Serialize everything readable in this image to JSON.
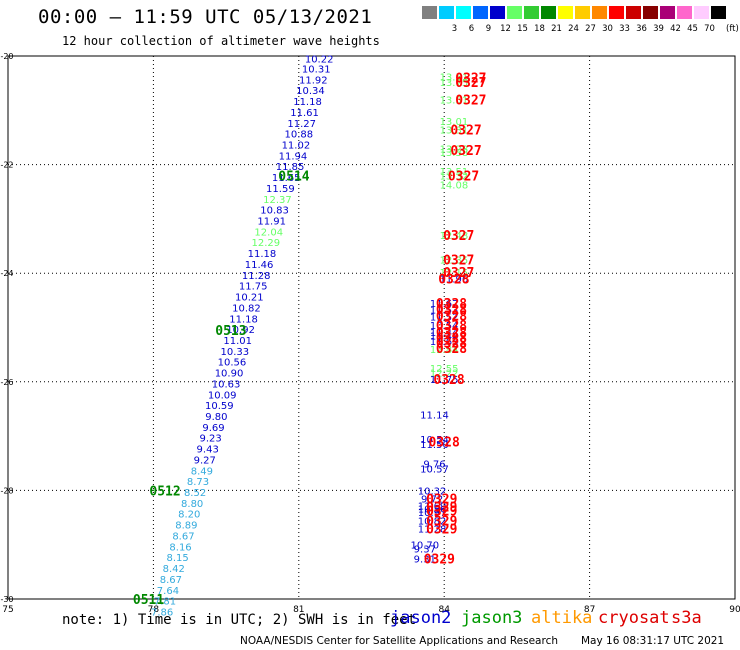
{
  "header": {
    "title": "00:00 – 11:59 UTC 05/13/2021",
    "subtitle": "12 hour collection of altimeter wave heights"
  },
  "legend": {
    "unit": "(ft)",
    "bins": [
      {
        "label": "",
        "color": "#808080"
      },
      {
        "label": "3",
        "color": "#00ccff"
      },
      {
        "label": "6",
        "color": "#00ffff"
      },
      {
        "label": "9",
        "color": "#0066ff"
      },
      {
        "label": "12",
        "color": "#0000cc"
      },
      {
        "label": "15",
        "color": "#66ff66"
      },
      {
        "label": "18",
        "color": "#33cc33"
      },
      {
        "label": "21",
        "color": "#008800"
      },
      {
        "label": "24",
        "color": "#ffff00"
      },
      {
        "label": "27",
        "color": "#ffcc00"
      },
      {
        "label": "30",
        "color": "#ff8800"
      },
      {
        "label": "33",
        "color": "#ff0000"
      },
      {
        "label": "36",
        "color": "#cc0000"
      },
      {
        "label": "39",
        "color": "#880000"
      },
      {
        "label": "42",
        "color": "#aa0077"
      },
      {
        "label": "45",
        "color": "#ff66cc"
      },
      {
        "label": "70",
        "color": "#ffccff"
      },
      {
        "label": "",
        "color": "#000000"
      }
    ]
  },
  "footer": {
    "note": "note: 1) Time is in UTC; 2) SWH is in feet",
    "credit": "NOAA/NESDIS Center for Satellite Applications and Research",
    "stamp": "May 16 08:31:17 UTC 2021",
    "missions": [
      {
        "name": "jason2",
        "color": "#0000cc"
      },
      {
        "name": "jason3",
        "color": "#009900"
      },
      {
        "name": "altika",
        "color": "#ff9900"
      },
      {
        "name": "cryosat",
        "color": "#dd0000"
      },
      {
        "name": "s3a",
        "color": "#dd0000"
      }
    ]
  },
  "chart_data": {
    "type": "scatter",
    "title": "",
    "xlim": [
      75,
      90
    ],
    "ylim": [
      -30,
      -20
    ],
    "xticks": [
      "75",
      "78",
      "81",
      "84",
      "87",
      "90"
    ],
    "yticks": [
      "-20",
      "-22",
      "-24",
      "-26",
      "-28",
      "-30"
    ],
    "grid": true,
    "colors": {
      "dark": "#0000cc",
      "mid": "#33aadd",
      "light": "#66ff66",
      "time": "#008800",
      "red": "#ff0000"
    },
    "track_a": [
      {
        "lon": 81.42,
        "lat": -20.05,
        "v": "10.22",
        "c": "dark"
      },
      {
        "lon": 81.36,
        "lat": -20.23,
        "v": "10.31",
        "c": "dark"
      },
      {
        "lon": 81.3,
        "lat": -20.43,
        "v": "11.92",
        "c": "dark"
      },
      {
        "lon": 81.24,
        "lat": -20.63,
        "v": "10.34",
        "c": "dark"
      },
      {
        "lon": 81.18,
        "lat": -20.83,
        "v": "11.18",
        "c": "dark"
      },
      {
        "lon": 81.12,
        "lat": -21.03,
        "v": "11.61",
        "c": "dark"
      },
      {
        "lon": 81.06,
        "lat": -21.23,
        "v": "11.27",
        "c": "dark"
      },
      {
        "lon": 81.0,
        "lat": -21.43,
        "v": "10.88",
        "c": "dark"
      },
      {
        "lon": 80.94,
        "lat": -21.63,
        "v": "11.02",
        "c": "dark"
      },
      {
        "lon": 80.88,
        "lat": -21.83,
        "v": "11.94",
        "c": "dark"
      },
      {
        "lon": 80.82,
        "lat": -22.03,
        "v": "11.85",
        "c": "dark"
      },
      {
        "lon": 80.74,
        "lat": -22.23,
        "v": "11.65",
        "c": "dark"
      },
      {
        "lon": 80.62,
        "lat": -22.43,
        "v": "11.59",
        "c": "dark"
      },
      {
        "lon": 80.56,
        "lat": -22.63,
        "v": "12.37",
        "c": "light"
      },
      {
        "lon": 80.5,
        "lat": -22.83,
        "v": "10.83",
        "c": "dark"
      },
      {
        "lon": 80.44,
        "lat": -23.03,
        "v": "11.91",
        "c": "dark"
      },
      {
        "lon": 80.38,
        "lat": -23.23,
        "v": "12.04",
        "c": "light"
      },
      {
        "lon": 80.32,
        "lat": -23.43,
        "v": "12.29",
        "c": "light"
      },
      {
        "lon": 80.24,
        "lat": -23.63,
        "v": "11.18",
        "c": "dark"
      },
      {
        "lon": 80.18,
        "lat": -23.83,
        "v": "11.46",
        "c": "dark"
      },
      {
        "lon": 80.12,
        "lat": -24.03,
        "v": "11.28",
        "c": "dark"
      },
      {
        "lon": 80.06,
        "lat": -24.23,
        "v": "11.75",
        "c": "dark"
      },
      {
        "lon": 79.98,
        "lat": -24.43,
        "v": "10.21",
        "c": "dark"
      },
      {
        "lon": 79.92,
        "lat": -24.63,
        "v": "10.82",
        "c": "dark"
      },
      {
        "lon": 79.86,
        "lat": -24.83,
        "v": "11.18",
        "c": "dark"
      },
      {
        "lon": 79.8,
        "lat": -25.03,
        "v": "10.92",
        "c": "dark"
      },
      {
        "lon": 79.74,
        "lat": -25.23,
        "v": "11.01",
        "c": "dark"
      },
      {
        "lon": 79.68,
        "lat": -25.43,
        "v": "10.33",
        "c": "dark"
      },
      {
        "lon": 79.62,
        "lat": -25.63,
        "v": "10.56",
        "c": "dark"
      },
      {
        "lon": 79.56,
        "lat": -25.83,
        "v": "10.90",
        "c": "dark"
      },
      {
        "lon": 79.5,
        "lat": -26.03,
        "v": "10.63",
        "c": "dark"
      },
      {
        "lon": 79.42,
        "lat": -26.23,
        "v": "10.09",
        "c": "dark"
      },
      {
        "lon": 79.36,
        "lat": -26.43,
        "v": "10.59",
        "c": "dark"
      },
      {
        "lon": 79.3,
        "lat": -26.63,
        "v": "9.80",
        "c": "dark"
      },
      {
        "lon": 79.24,
        "lat": -26.83,
        "v": "9.69",
        "c": "dark"
      },
      {
        "lon": 79.18,
        "lat": -27.03,
        "v": "9.23",
        "c": "dark"
      },
      {
        "lon": 79.12,
        "lat": -27.23,
        "v": "9.43",
        "c": "dark"
      },
      {
        "lon": 79.06,
        "lat": -27.43,
        "v": "9.27",
        "c": "dark"
      },
      {
        "lon": 79.0,
        "lat": -27.63,
        "v": "8.49",
        "c": "mid"
      },
      {
        "lon": 78.92,
        "lat": -27.83,
        "v": "8.73",
        "c": "mid"
      },
      {
        "lon": 78.86,
        "lat": -28.03,
        "v": "8.52",
        "c": "mid"
      },
      {
        "lon": 78.8,
        "lat": -28.23,
        "v": "8.80",
        "c": "mid"
      },
      {
        "lon": 78.74,
        "lat": -28.43,
        "v": "8.20",
        "c": "mid"
      },
      {
        "lon": 78.68,
        "lat": -28.63,
        "v": "8.89",
        "c": "mid"
      },
      {
        "lon": 78.62,
        "lat": -28.83,
        "v": "8.67",
        "c": "mid"
      },
      {
        "lon": 78.56,
        "lat": -29.03,
        "v": "8.16",
        "c": "mid"
      },
      {
        "lon": 78.5,
        "lat": -29.23,
        "v": "8.15",
        "c": "mid"
      },
      {
        "lon": 78.42,
        "lat": -29.43,
        "v": "8.42",
        "c": "mid"
      },
      {
        "lon": 78.36,
        "lat": -29.63,
        "v": "8.67",
        "c": "mid"
      },
      {
        "lon": 78.3,
        "lat": -29.83,
        "v": "7.64",
        "c": "mid"
      },
      {
        "lon": 78.24,
        "lat": -30.03,
        "v": "7.81",
        "c": "mid"
      },
      {
        "lon": 78.18,
        "lat": -30.23,
        "v": "7.86",
        "c": "mid"
      }
    ],
    "track_a_times": [
      {
        "lon": 80.9,
        "lat": -22.2,
        "t": "0514"
      },
      {
        "lon": 79.6,
        "lat": -25.05,
        "t": "0513"
      },
      {
        "lon": 78.24,
        "lat": -28.0,
        "t": "0512"
      },
      {
        "lon": 77.9,
        "lat": -30.0,
        "t": "0511"
      }
    ],
    "track_b": [
      {
        "lon": 84.2,
        "lat": -20.38,
        "v": "13.51",
        "c": "light"
      },
      {
        "lon": 84.2,
        "lat": -20.48,
        "v": "13.75",
        "c": "light"
      },
      {
        "lon": 84.2,
        "lat": -20.8,
        "v": "13.51",
        "c": "light"
      },
      {
        "lon": 84.2,
        "lat": -21.2,
        "v": "13.01",
        "c": "light"
      },
      {
        "lon": 84.2,
        "lat": -21.35,
        "v": "13.31",
        "c": "light"
      },
      {
        "lon": 84.2,
        "lat": -21.7,
        "v": "13.28",
        "c": "light"
      },
      {
        "lon": 84.2,
        "lat": -21.77,
        "v": "13.38",
        "c": "light"
      },
      {
        "lon": 84.2,
        "lat": -22.12,
        "v": "13.51",
        "c": "light"
      },
      {
        "lon": 84.2,
        "lat": -22.2,
        "v": "13.32",
        "c": "light"
      },
      {
        "lon": 84.2,
        "lat": -22.37,
        "v": "14.08",
        "c": "light"
      },
      {
        "lon": 84.2,
        "lat": -23.3,
        "v": "12.48",
        "c": "light"
      },
      {
        "lon": 84.2,
        "lat": -23.75,
        "v": "12.35",
        "c": "light"
      },
      {
        "lon": 84.2,
        "lat": -23.98,
        "v": "12.15",
        "c": "light"
      },
      {
        "lon": 84.2,
        "lat": -24.1,
        "v": "11.96",
        "c": "dark"
      },
      {
        "lon": 84.0,
        "lat": -24.55,
        "v": "11.67",
        "c": "dark"
      },
      {
        "lon": 84.0,
        "lat": -24.67,
        "v": "11.53",
        "c": "dark"
      },
      {
        "lon": 84.0,
        "lat": -24.8,
        "v": "11.52",
        "c": "dark"
      },
      {
        "lon": 84.0,
        "lat": -24.95,
        "v": "10.54",
        "c": "dark"
      },
      {
        "lon": 84.0,
        "lat": -25.08,
        "v": "11.44",
        "c": "dark"
      },
      {
        "lon": 84.0,
        "lat": -25.15,
        "v": "10.44",
        "c": "dark"
      },
      {
        "lon": 84.0,
        "lat": -25.25,
        "v": "11.63",
        "c": "dark"
      },
      {
        "lon": 84.0,
        "lat": -25.4,
        "v": "12.84",
        "c": "light"
      },
      {
        "lon": 84.0,
        "lat": -25.75,
        "v": "12.55",
        "c": "light"
      },
      {
        "lon": 84.0,
        "lat": -25.83,
        "v": "12.22",
        "c": "light"
      },
      {
        "lon": 84.0,
        "lat": -25.95,
        "v": "11.75",
        "c": "dark"
      },
      {
        "lon": 83.8,
        "lat": -26.6,
        "v": "11.14",
        "c": "dark"
      },
      {
        "lon": 83.8,
        "lat": -27.05,
        "v": "10.54",
        "c": "dark"
      },
      {
        "lon": 83.8,
        "lat": -27.15,
        "v": "11.50",
        "c": "dark"
      },
      {
        "lon": 83.8,
        "lat": -27.5,
        "v": "9.76",
        "c": "dark"
      },
      {
        "lon": 83.8,
        "lat": -27.6,
        "v": "10.57",
        "c": "dark"
      },
      {
        "lon": 83.75,
        "lat": -28.0,
        "v": "10.32",
        "c": "dark"
      },
      {
        "lon": 83.75,
        "lat": -28.15,
        "v": "9.72",
        "c": "dark"
      },
      {
        "lon": 83.75,
        "lat": -28.28,
        "v": "11.69",
        "c": "dark"
      },
      {
        "lon": 83.75,
        "lat": -28.33,
        "v": "10.56",
        "c": "dark"
      },
      {
        "lon": 83.75,
        "lat": -28.4,
        "v": "10.97",
        "c": "dark"
      },
      {
        "lon": 83.75,
        "lat": -28.55,
        "v": "10.82",
        "c": "dark"
      },
      {
        "lon": 83.75,
        "lat": -28.7,
        "v": "11.28",
        "c": "dark"
      },
      {
        "lon": 83.6,
        "lat": -29.0,
        "v": "10.70",
        "c": "dark"
      },
      {
        "lon": 83.6,
        "lat": -29.07,
        "v": "9.37",
        "c": "dark"
      },
      {
        "lon": 83.6,
        "lat": -29.25,
        "v": "9.31",
        "c": "dark"
      }
    ],
    "track_b_times": [
      {
        "lon": 84.55,
        "lat": -20.4,
        "t": "0327"
      },
      {
        "lon": 84.55,
        "lat": -20.48,
        "t": "0327"
      },
      {
        "lon": 84.55,
        "lat": -20.8,
        "t": "0327"
      },
      {
        "lon": 84.45,
        "lat": -21.35,
        "t": "0327"
      },
      {
        "lon": 84.45,
        "lat": -21.73,
        "t": "0327"
      },
      {
        "lon": 84.4,
        "lat": -22.2,
        "t": "0327"
      },
      {
        "lon": 84.3,
        "lat": -23.3,
        "t": "0327"
      },
      {
        "lon": 84.3,
        "lat": -23.75,
        "t": "0327"
      },
      {
        "lon": 84.3,
        "lat": -23.98,
        "t": "0327"
      },
      {
        "lon": 84.2,
        "lat": -24.1,
        "t": "0328"
      },
      {
        "lon": 84.15,
        "lat": -24.55,
        "t": "0328"
      },
      {
        "lon": 84.15,
        "lat": -24.66,
        "t": "0328"
      },
      {
        "lon": 84.15,
        "lat": -24.78,
        "t": "0328"
      },
      {
        "lon": 84.15,
        "lat": -24.95,
        "t": "0328"
      },
      {
        "lon": 84.15,
        "lat": -25.08,
        "t": "0328"
      },
      {
        "lon": 84.15,
        "lat": -25.18,
        "t": "0328"
      },
      {
        "lon": 84.15,
        "lat": -25.28,
        "t": "0328"
      },
      {
        "lon": 84.15,
        "lat": -25.38,
        "t": "0328"
      },
      {
        "lon": 84.1,
        "lat": -25.95,
        "t": "0328"
      },
      {
        "lon": 84.0,
        "lat": -27.1,
        "t": "0328"
      },
      {
        "lon": 83.95,
        "lat": -28.15,
        "t": "0329"
      },
      {
        "lon": 83.95,
        "lat": -28.3,
        "t": "0329"
      },
      {
        "lon": 83.95,
        "lat": -28.37,
        "t": "0329"
      },
      {
        "lon": 83.95,
        "lat": -28.55,
        "t": "0329"
      },
      {
        "lon": 83.95,
        "lat": -28.7,
        "t": "0329"
      },
      {
        "lon": 83.9,
        "lat": -29.25,
        "t": "0329"
      }
    ]
  }
}
